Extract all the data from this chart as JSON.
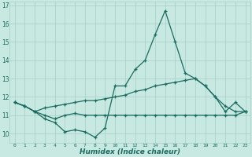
{
  "xlabel": "Humidex (Indice chaleur)",
  "background_color": "#c8e8e2",
  "line_color": "#1a6b60",
  "grid_color": "#a8ccc8",
  "xlim": [
    -0.5,
    23.5
  ],
  "ylim": [
    9.5,
    17.2
  ],
  "yticks": [
    10,
    11,
    12,
    13,
    14,
    15,
    16,
    17
  ],
  "xticks": [
    0,
    1,
    2,
    3,
    4,
    5,
    6,
    7,
    8,
    9,
    10,
    11,
    12,
    13,
    14,
    15,
    16,
    17,
    18,
    19,
    20,
    21,
    22,
    23
  ],
  "line1_y": [
    11.7,
    11.5,
    11.2,
    10.8,
    10.6,
    10.1,
    10.2,
    10.1,
    9.8,
    10.3,
    12.6,
    12.6,
    13.5,
    14.0,
    15.4,
    16.7,
    15.0,
    13.3,
    13.0,
    12.6,
    12.0,
    11.2,
    11.7,
    11.2
  ],
  "line2_y": [
    11.7,
    11.5,
    11.2,
    11.4,
    11.5,
    11.6,
    11.7,
    11.8,
    11.8,
    11.9,
    12.0,
    12.1,
    12.3,
    12.4,
    12.6,
    12.7,
    12.8,
    12.9,
    13.0,
    12.6,
    12.0,
    11.5,
    11.2,
    11.2
  ],
  "line3_y": [
    11.7,
    11.5,
    11.2,
    11.0,
    10.8,
    11.0,
    11.1,
    11.0,
    11.0,
    11.0,
    11.0,
    11.0,
    11.0,
    11.0,
    11.0,
    11.0,
    11.0,
    11.0,
    11.0,
    11.0,
    11.0,
    11.0,
    11.0,
    11.2
  ]
}
